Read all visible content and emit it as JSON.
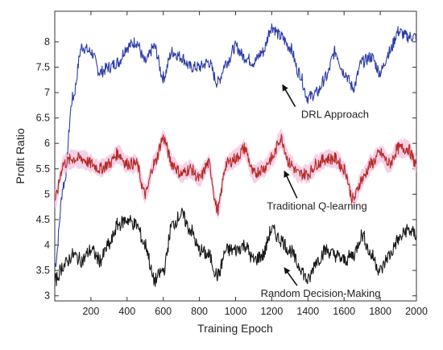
{
  "chart_data": {
    "type": "line",
    "xlabel": "Training Epoch",
    "ylabel": "Profit Ratio",
    "xlim": [
      0,
      2000
    ],
    "ylim": [
      2.9,
      8.6
    ],
    "xticks": [
      200,
      400,
      600,
      800,
      1000,
      1200,
      1400,
      1600,
      1800,
      2000
    ],
    "yticks": [
      3,
      3.5,
      4,
      4.5,
      5,
      5.5,
      6,
      6.5,
      7,
      7.5,
      8
    ],
    "grid": false,
    "colors": {
      "drl": "#2d3ea6",
      "q": "#b52a22",
      "q_band": "#f6c8e4",
      "random": "#1a1a1a"
    },
    "series": [
      {
        "id": "drl",
        "x": [
          0,
          50,
          100,
          150,
          200,
          250,
          300,
          350,
          400,
          450,
          500,
          550,
          600,
          650,
          700,
          750,
          800,
          850,
          900,
          950,
          1000,
          1050,
          1100,
          1150,
          1200,
          1250,
          1300,
          1350,
          1400,
          1450,
          1500,
          1550,
          1600,
          1650,
          1700,
          1750,
          1800,
          1850,
          1900,
          1950,
          2000
        ],
        "values": [
          3.6,
          5.2,
          6.9,
          7.9,
          7.8,
          7.4,
          7.5,
          7.6,
          7.9,
          8.0,
          7.6,
          7.9,
          7.3,
          7.8,
          7.7,
          7.5,
          7.5,
          7.6,
          7.2,
          7.6,
          7.9,
          7.7,
          7.6,
          7.8,
          8.3,
          8.1,
          7.9,
          7.4,
          6.9,
          7.0,
          7.3,
          7.8,
          7.4,
          7.1,
          7.6,
          7.7,
          7.4,
          7.8,
          8.2,
          8.1,
          8.1
        ]
      },
      {
        "id": "q",
        "x": [
          0,
          50,
          100,
          150,
          200,
          250,
          300,
          350,
          400,
          450,
          500,
          550,
          600,
          650,
          700,
          750,
          800,
          850,
          900,
          950,
          1000,
          1050,
          1100,
          1150,
          1200,
          1250,
          1300,
          1350,
          1400,
          1450,
          1500,
          1550,
          1600,
          1650,
          1700,
          1750,
          1800,
          1850,
          1900,
          1950,
          2000
        ],
        "values": [
          4.9,
          5.6,
          5.7,
          5.7,
          5.6,
          5.5,
          5.6,
          5.8,
          5.6,
          5.6,
          5.0,
          5.6,
          6.1,
          5.6,
          5.4,
          5.5,
          5.3,
          5.6,
          4.7,
          5.6,
          5.7,
          5.9,
          5.4,
          5.5,
          5.7,
          6.1,
          5.6,
          5.4,
          5.4,
          5.6,
          5.7,
          5.7,
          5.5,
          4.9,
          5.3,
          5.6,
          5.8,
          5.6,
          5.9,
          5.9,
          5.6
        ]
      },
      {
        "id": "random",
        "x": [
          0,
          50,
          100,
          150,
          200,
          250,
          300,
          350,
          400,
          450,
          500,
          550,
          600,
          650,
          700,
          750,
          800,
          850,
          900,
          950,
          1000,
          1050,
          1100,
          1150,
          1200,
          1250,
          1300,
          1350,
          1400,
          1450,
          1500,
          1550,
          1600,
          1650,
          1700,
          1750,
          1800,
          1850,
          1900,
          1950,
          2000
        ],
        "values": [
          3.3,
          3.6,
          3.8,
          3.7,
          3.9,
          3.7,
          4.0,
          4.4,
          4.5,
          4.4,
          4.0,
          3.3,
          3.5,
          4.4,
          4.6,
          4.3,
          3.9,
          3.8,
          3.4,
          3.9,
          3.9,
          4.0,
          3.7,
          3.8,
          4.3,
          4.1,
          3.9,
          3.6,
          3.3,
          3.7,
          3.9,
          3.8,
          3.7,
          3.8,
          4.2,
          3.8,
          3.5,
          3.8,
          4.1,
          4.3,
          4.2
        ]
      }
    ],
    "annotations": [
      {
        "text": "DRL Approach",
        "x": 1550,
        "y": 6.5,
        "arrow_to_x": 1260,
        "arrow_to_y": 7.15
      },
      {
        "text": "Traditional Q-learning",
        "x": 1450,
        "y": 4.7,
        "arrow_to_x": 1270,
        "arrow_to_y": 5.45
      },
      {
        "text": "Random Decision-Making",
        "x": 1470,
        "y": 2.98,
        "arrow_to_x": 1270,
        "arrow_to_y": 3.55
      }
    ]
  }
}
